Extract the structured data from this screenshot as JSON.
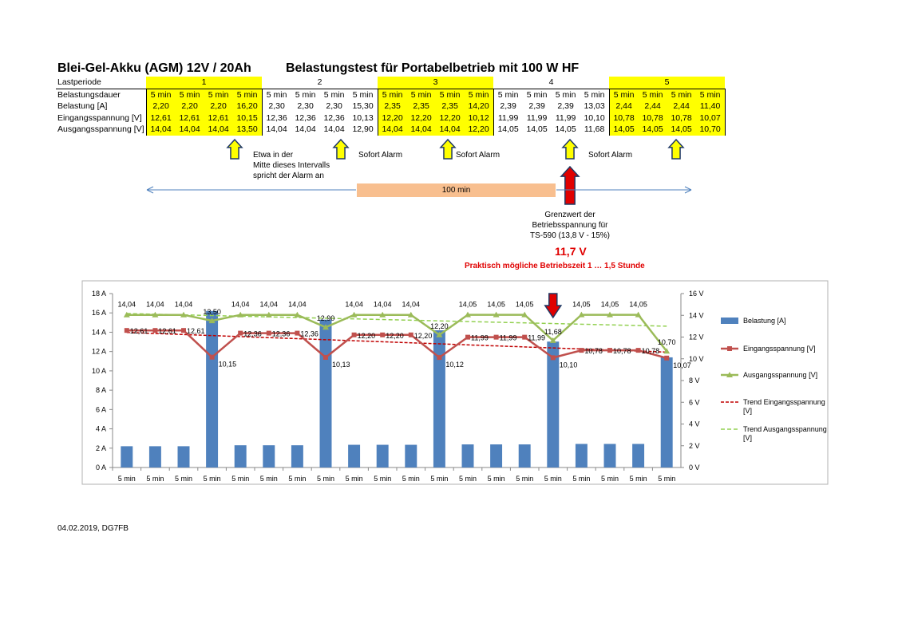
{
  "header": {
    "title_left": "Blei-Gel-Akku (AGM) 12V / 20Ah",
    "title_right": "Belastungstest für Portabelbetrieb mit 100 W HF"
  },
  "table": {
    "row_labels": [
      "Lastperiode",
      "Belastungsdauer",
      "Belastung [A]",
      "Eingangsspannung [V]",
      "Ausgangsspannung [V]"
    ],
    "periods": [
      "1",
      "2",
      "3",
      "4",
      "5"
    ],
    "duration": [
      "5 min",
      "5 min",
      "5 min",
      "5 min",
      "5 min",
      "5 min",
      "5 min",
      "5 min",
      "5 min",
      "5 min",
      "5 min",
      "5 min",
      "5 min",
      "5 min",
      "5 min",
      "5 min",
      "5 min",
      "5 min",
      "5 min",
      "5 min"
    ],
    "load": [
      "2,20",
      "2,20",
      "2,20",
      "16,20",
      "2,30",
      "2,30",
      "2,30",
      "15,30",
      "2,35",
      "2,35",
      "2,35",
      "14,20",
      "2,39",
      "2,39",
      "2,39",
      "13,03",
      "2,44",
      "2,44",
      "2,44",
      "11,40"
    ],
    "input": [
      "12,61",
      "12,61",
      "12,61",
      "10,15",
      "12,36",
      "12,36",
      "12,36",
      "10,13",
      "12,20",
      "12,20",
      "12,20",
      "10,12",
      "11,99",
      "11,99",
      "11,99",
      "10,10",
      "10,78",
      "10,78",
      "10,78",
      "10,07"
    ],
    "output": [
      "14,04",
      "14,04",
      "14,04",
      "13,50",
      "14,04",
      "14,04",
      "14,04",
      "12,90",
      "14,04",
      "14,04",
      "14,04",
      "12,20",
      "14,05",
      "14,05",
      "14,05",
      "11,68",
      "14,05",
      "14,05",
      "14,05",
      "10,70"
    ]
  },
  "annotations": {
    "note1": "Etwa in der\nMitte dieses Intervalls\nspricht der Alarm an",
    "alarm": "Sofort Alarm",
    "range": "100 min",
    "limit_text": "Grenzwert der\nBetriebsspannung für\nTS-590 (13,8 V - 15%)",
    "limit_value": "11,7 V",
    "practical": "Praktisch mögliche Betriebszeit   1 … 1,5 Stunde"
  },
  "colors": {
    "yellow_cell": "#ffff00",
    "bar": "#4f81bd",
    "input_line": "#c0504d",
    "output_line": "#9bbb59",
    "trend_input": "#c00000",
    "trend_output": "#92d050",
    "arrow_limit": "#e00000",
    "arrow_limit_outline": "#1f3864",
    "arrow_alarm": "#ffff00",
    "arrow_alarm_outline": "#1f3864",
    "range_bar": "#f8bf8f",
    "range_arrow": "#4f81bd"
  },
  "chart_data": {
    "type": "bar",
    "categories": [
      "5 min",
      "5 min",
      "5 min",
      "5 min",
      "5 min",
      "5 min",
      "5 min",
      "5 min",
      "5 min",
      "5 min",
      "5 min",
      "5 min",
      "5 min",
      "5 min",
      "5 min",
      "5 min",
      "5 min",
      "5 min",
      "5 min",
      "5 min"
    ],
    "series": [
      {
        "name": "Belastung [A]",
        "type": "bar",
        "axis": "left",
        "values": [
          2.2,
          2.2,
          2.2,
          16.2,
          2.3,
          2.3,
          2.3,
          15.3,
          2.35,
          2.35,
          2.35,
          14.2,
          2.39,
          2.39,
          2.39,
          13.03,
          2.44,
          2.44,
          2.44,
          11.4
        ]
      },
      {
        "name": "Eingangsspannung [V]",
        "type": "line",
        "axis": "right",
        "values": [
          12.61,
          12.61,
          12.61,
          10.15,
          12.36,
          12.36,
          12.36,
          10.13,
          12.2,
          12.2,
          12.2,
          10.12,
          11.99,
          11.99,
          11.99,
          10.1,
          10.78,
          10.78,
          10.78,
          10.07
        ],
        "labels": [
          "12,61",
          "12,61",
          "12,61",
          "10,15",
          "12,36",
          "12,36",
          "12,36",
          "10,13",
          "12,20",
          "12,20",
          "12,20",
          "10,12",
          "11,99",
          "11,99",
          "11,99",
          "10,10",
          "10,78",
          "10,78",
          "10,78",
          "10,07"
        ]
      },
      {
        "name": "Ausgangsspannung [V]",
        "type": "line",
        "axis": "right",
        "values": [
          14.04,
          14.04,
          14.04,
          13.5,
          14.04,
          14.04,
          14.04,
          12.9,
          14.04,
          14.04,
          14.04,
          12.2,
          14.05,
          14.05,
          14.05,
          11.68,
          14.05,
          14.05,
          14.05,
          10.7
        ],
        "labels": [
          "14,04",
          "14,04",
          "14,04",
          "13,50",
          "14,04",
          "14,04",
          "14,04",
          "12,90",
          "14,04",
          "14,04",
          "14,04",
          "12,20",
          "14,05",
          "14,05",
          "14,05",
          "11,68",
          "14,05",
          "14,05",
          "14,05",
          "10,70"
        ]
      },
      {
        "name": "Trend Eingangsspannung [V]",
        "type": "trend",
        "axis": "right",
        "of": "Eingangsspannung [V]"
      },
      {
        "name": "Trend Ausgangsspannung [V]",
        "type": "trend",
        "axis": "right",
        "of": "Ausgangsspannung [V]"
      }
    ],
    "y_left": {
      "min": 0,
      "max": 18,
      "step": 2,
      "ticks": [
        "0 A",
        "2 A",
        "4 A",
        "6 A",
        "8 A",
        "10 A",
        "12 A",
        "14 A",
        "16 A",
        "18 A"
      ]
    },
    "y_right": {
      "min": 0,
      "max": 16,
      "step": 2,
      "ticks": [
        "0 V",
        "2 V",
        "4 V",
        "6 V",
        "8 V",
        "10 V",
        "12 V",
        "14 V",
        "16 V"
      ]
    },
    "grid": false,
    "legend": "right"
  },
  "footer": "04.02.2019, DG7FB"
}
